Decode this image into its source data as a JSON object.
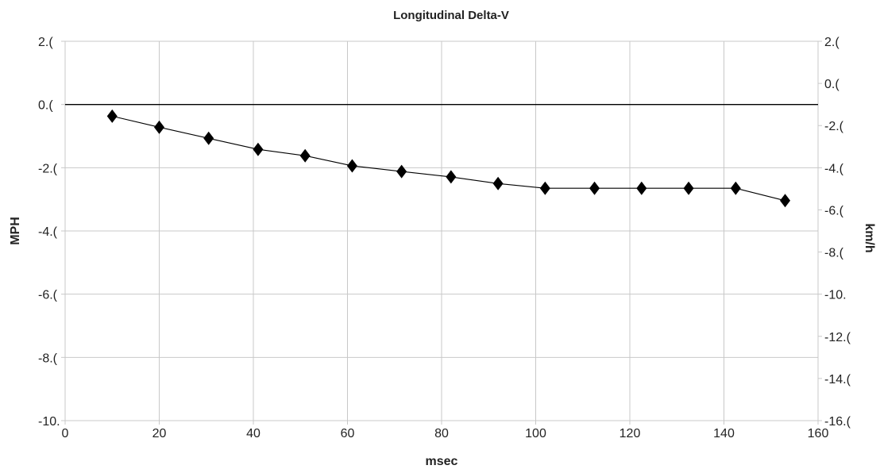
{
  "chart_data": {
    "type": "line",
    "title": "Longitudinal Delta-V",
    "xlabel": "msec",
    "ylabel_left": "MPH",
    "ylabel_right": "km/h",
    "xlim": [
      0,
      160
    ],
    "ylim_left": [
      -10,
      2
    ],
    "ylim_right": [
      -16,
      2
    ],
    "x_ticks": [
      0,
      20,
      40,
      60,
      80,
      100,
      120,
      140,
      160
    ],
    "x_tick_labels": [
      "0",
      "20",
      "40",
      "60",
      "80",
      "100",
      "120",
      "140",
      "160"
    ],
    "y_left_ticks": [
      2,
      0,
      -2,
      -4,
      -6,
      -8,
      -10
    ],
    "y_left_tick_labels": [
      "2.(",
      "0.(",
      "-2.(",
      "-4.(",
      "-6.(",
      "-8.(",
      "-10."
    ],
    "y_right_ticks": [
      2,
      0,
      -2,
      -4,
      -6,
      -8,
      -10,
      -12,
      -14,
      -16
    ],
    "y_right_tick_labels": [
      "2.(",
      "0.(",
      "-2.(",
      "-4.(",
      "-6.(",
      "-8.(",
      "-10.",
      "-12.(",
      "-14.(",
      "-16.("
    ],
    "grid": true,
    "zero_line": true,
    "marker": "diamond",
    "line_color": "#000000",
    "grid_color": "#c8c8c8",
    "series": [
      {
        "x": [
          10,
          20,
          30.5,
          41,
          51,
          61,
          71.5,
          82,
          92,
          102,
          112.5,
          122.5,
          132.5,
          142.5,
          153
        ],
        "y": [
          -0.37,
          -0.72,
          -1.07,
          -1.42,
          -1.62,
          -1.94,
          -2.12,
          -2.29,
          -2.5,
          -2.65,
          -2.65,
          -2.65,
          -2.65,
          -2.65,
          -3.04
        ]
      }
    ]
  }
}
